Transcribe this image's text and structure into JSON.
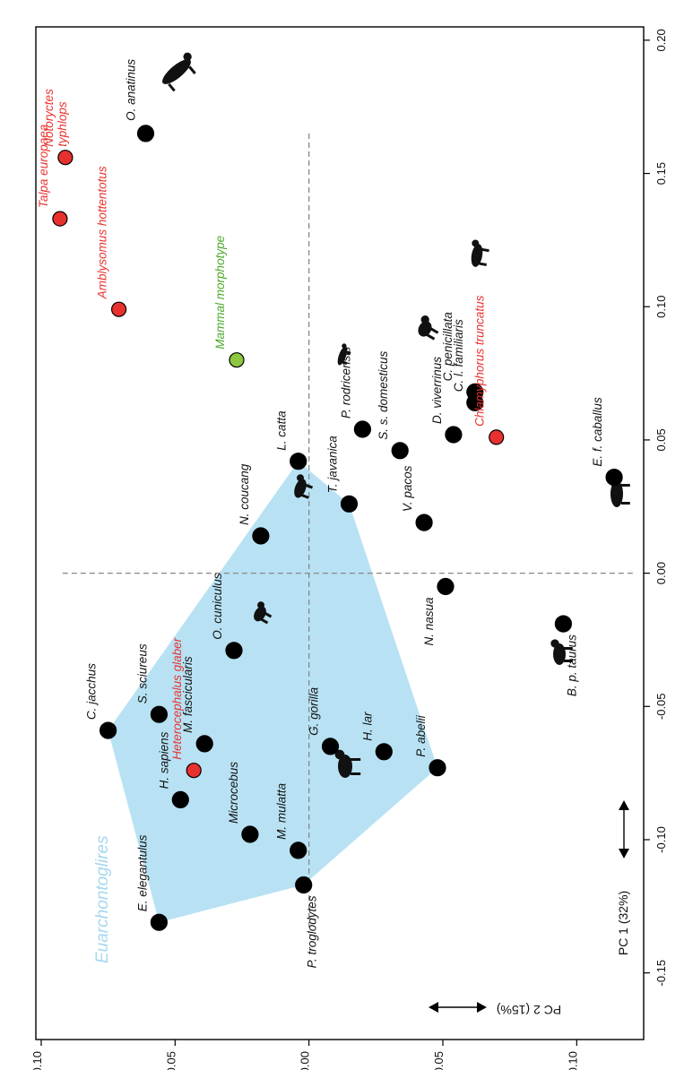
{
  "chart_data": {
    "type": "scatter",
    "orientation": "rotated 90 degrees clockwise (PC 1 runs top-to-bottom along the right edge, PC 2 runs right-to-left along the bottom edge)",
    "x_axis": {
      "label": "PC 1 (32%)",
      "lim": [
        -0.175,
        0.205
      ],
      "ticks": [
        -0.15,
        -0.1,
        -0.05,
        0.0,
        0.05,
        0.1,
        0.15,
        0.2
      ],
      "tick_labels": [
        "-0.15",
        "-0.10",
        "-0.05",
        "0.00",
        "0.05",
        "0.10",
        "0.15",
        "0.20"
      ]
    },
    "y_axis": {
      "label": "PC 2 (15%)",
      "lim": [
        -0.125,
        0.102
      ],
      "ticks": [
        -0.1,
        -0.05,
        0.0,
        0.05,
        0.1
      ],
      "tick_labels": [
        "-0.10",
        "-0.05",
        "0.00",
        "0.05",
        "0.10"
      ]
    },
    "grid": false,
    "reference_lines": {
      "x": 0.0,
      "y": 0.0
    },
    "colors": {
      "black_point": "#000000",
      "red_point": "#e8312e",
      "green_point": "#8dc63f",
      "hull_fill": "#b8e2f4",
      "hull_label": "#a6d8ef",
      "red_text": "#e8312e",
      "green_text": "#4aa82a"
    },
    "group_label": "Euarchontoglires",
    "hull_members": [
      "E. elegantulus",
      "C. jacchus",
      "L. catta",
      "T. javanica",
      "P. abelii",
      "P. troglodytes"
    ],
    "points": [
      {
        "label": "O. anatinus",
        "pc1": 0.165,
        "pc2": 0.061,
        "group": "black"
      },
      {
        "label": "Notoryctes typhlops",
        "pc1": 0.156,
        "pc2": 0.091,
        "group": "red"
      },
      {
        "label": "Talpa europaea",
        "pc1": 0.133,
        "pc2": 0.093,
        "group": "red"
      },
      {
        "label": "Amblysomus hottentotus",
        "pc1": 0.099,
        "pc2": 0.071,
        "group": "red"
      },
      {
        "label": "Mammal morphotype",
        "pc1": 0.08,
        "pc2": 0.027,
        "group": "green"
      },
      {
        "label": "P. rodricensis",
        "pc1": 0.054,
        "pc2": -0.02,
        "group": "black"
      },
      {
        "label": "S. s. domesticus",
        "pc1": 0.046,
        "pc2": -0.034,
        "group": "black"
      },
      {
        "label": "D. viverrinus",
        "pc1": 0.052,
        "pc2": -0.054,
        "group": "black"
      },
      {
        "label": "C. penicillata",
        "pc1": 0.068,
        "pc2": -0.062,
        "group": "black"
      },
      {
        "label": "C. l. familiaris",
        "pc1": 0.064,
        "pc2": -0.062,
        "group": "black"
      },
      {
        "label": "Chlamyphorus truncatus",
        "pc1": 0.051,
        "pc2": -0.07,
        "group": "red"
      },
      {
        "label": "E. f. caballus",
        "pc1": 0.036,
        "pc2": -0.114,
        "group": "black"
      },
      {
        "label": "L. catta",
        "pc1": 0.042,
        "pc2": 0.004,
        "group": "black"
      },
      {
        "label": "T. javanica",
        "pc1": 0.026,
        "pc2": -0.015,
        "group": "black"
      },
      {
        "label": "V. pacos",
        "pc1": 0.019,
        "pc2": -0.043,
        "group": "black"
      },
      {
        "label": "N. coucang",
        "pc1": 0.014,
        "pc2": 0.018,
        "group": "black"
      },
      {
        "label": "N. nasua",
        "pc1": -0.005,
        "pc2": -0.051,
        "group": "black"
      },
      {
        "label": "O. cuniculus",
        "pc1": -0.029,
        "pc2": 0.028,
        "group": "black"
      },
      {
        "label": "B. p. taurus",
        "pc1": -0.019,
        "pc2": -0.095,
        "group": "black"
      },
      {
        "label": "C. jacchus",
        "pc1": -0.059,
        "pc2": 0.075,
        "group": "black"
      },
      {
        "label": "S. sciureus",
        "pc1": -0.053,
        "pc2": 0.056,
        "group": "black"
      },
      {
        "label": "M. fascicularis",
        "pc1": -0.064,
        "pc2": 0.039,
        "group": "black"
      },
      {
        "label": "Heterocephalus glaber",
        "pc1": -0.074,
        "pc2": 0.043,
        "group": "red"
      },
      {
        "label": "H. sapiens",
        "pc1": -0.085,
        "pc2": 0.048,
        "group": "black"
      },
      {
        "label": "G. gorilla",
        "pc1": -0.065,
        "pc2": -0.008,
        "group": "black"
      },
      {
        "label": "H. lar",
        "pc1": -0.067,
        "pc2": -0.028,
        "group": "black"
      },
      {
        "label": "P. abelii",
        "pc1": -0.073,
        "pc2": -0.048,
        "group": "black"
      },
      {
        "label": "Microcebus",
        "pc1": -0.098,
        "pc2": 0.022,
        "group": "black"
      },
      {
        "label": "M. mulatta",
        "pc1": -0.104,
        "pc2": 0.004,
        "group": "black"
      },
      {
        "label": "P. troglodytes",
        "pc1": -0.117,
        "pc2": 0.002,
        "group": "black"
      },
      {
        "label": "E. elegantulus",
        "pc1": -0.131,
        "pc2": 0.056,
        "group": "black"
      }
    ]
  }
}
